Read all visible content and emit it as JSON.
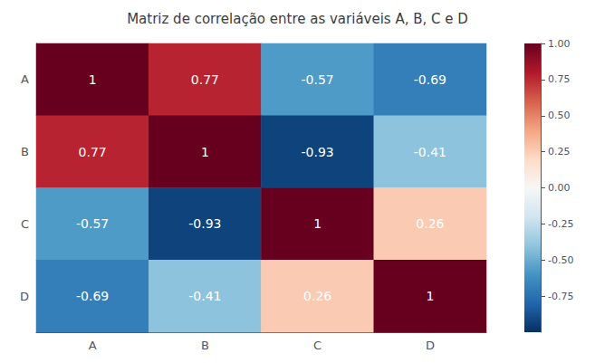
{
  "chart_data": {
    "type": "heatmap",
    "title": "Matriz de correlação entre as variáveis A, B, C e D",
    "categories": [
      "A",
      "B",
      "C",
      "D"
    ],
    "values": [
      [
        1.0,
        0.77,
        -0.57,
        -0.69
      ],
      [
        0.77,
        1.0,
        -0.93,
        -0.41
      ],
      [
        -0.57,
        -0.93,
        1.0,
        0.26
      ],
      [
        -0.69,
        -0.41,
        0.26,
        1.0
      ]
    ],
    "data_labels": true,
    "color": [
      "#053061",
      "#2166ac",
      "#4393c3",
      "#92c5de",
      "#d1e5f0",
      "#f7f7f7",
      "#fddbc7",
      "#f4a582",
      "#d6604d",
      "#b2182b",
      "#67001f"
    ],
    "zlim": [
      -1.0,
      1.0
    ],
    "zticks": [
      {
        "value": 1.0,
        "label": "1.00"
      },
      {
        "value": 0.75,
        "label": "0.75"
      },
      {
        "value": 0.5,
        "label": "0.50"
      },
      {
        "value": 0.25,
        "label": "0.25"
      },
      {
        "value": 0.0,
        "label": "0.00"
      },
      {
        "value": -0.25,
        "label": "-0.25"
      },
      {
        "value": -0.5,
        "label": "-0.50"
      },
      {
        "value": -0.75,
        "label": "-0.75"
      }
    ]
  }
}
